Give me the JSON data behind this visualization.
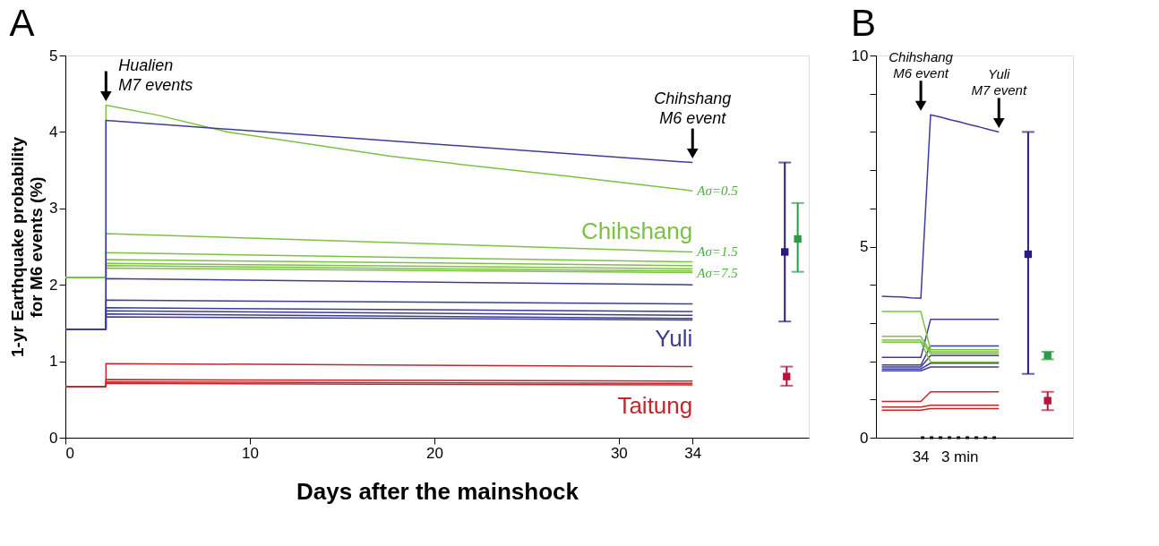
{
  "chart_data": [
    {
      "type": "line",
      "title": "A",
      "xlabel": "Days after the mainshock",
      "ylabel": "1-yr Earthquake probability\nfor M6 events (%)",
      "xlim": [
        0,
        40.3
      ],
      "xticks": [
        0,
        10,
        20,
        30,
        34
      ],
      "ylim": [
        0,
        5
      ],
      "yticks": [
        0,
        1,
        2,
        3,
        4,
        5
      ],
      "grid": false,
      "legend": false,
      "line_style": "solid",
      "series": [
        {
          "color": "#7cc242",
          "x": [
            0,
            2.2,
            2.2,
            5,
            8.8,
            13,
            17.7,
            22,
            27.3,
            34
          ],
          "values": [
            2.1,
            2.1,
            4.35,
            4.22,
            4.0,
            3.85,
            3.68,
            3.56,
            3.42,
            3.23
          ]
        },
        {
          "name": "Chihshang",
          "color": "#7cc242",
          "x": [
            0,
            2.2,
            2.2,
            34
          ],
          "values": [
            2.1,
            2.1,
            2.67,
            2.43
          ]
        },
        {
          "color": "#7cc242",
          "x": [
            0,
            2.2,
            2.2,
            34
          ],
          "values": [
            2.1,
            2.1,
            2.42,
            2.3
          ]
        },
        {
          "color": "#7cc242",
          "x": [
            0,
            2.2,
            2.2,
            34
          ],
          "values": [
            2.1,
            2.1,
            2.33,
            2.25
          ]
        },
        {
          "color": "#7cc242",
          "x": [
            0,
            2.2,
            2.2,
            34
          ],
          "values": [
            2.1,
            2.1,
            2.28,
            2.21
          ]
        },
        {
          "color": "#7cc242",
          "x": [
            0,
            2.2,
            2.2,
            34
          ],
          "values": [
            2.1,
            2.1,
            2.25,
            2.18
          ]
        },
        {
          "color": "#7cc242",
          "x": [
            0,
            2.2,
            2.2,
            34
          ],
          "values": [
            2.1,
            2.1,
            2.22,
            2.16
          ]
        },
        {
          "color": "#3d3d99",
          "x": [
            0,
            2.2,
            2.2,
            34
          ],
          "values": [
            1.42,
            1.42,
            4.15,
            3.6
          ]
        },
        {
          "color": "#3d3d99",
          "x": [
            0,
            2.2,
            2.2,
            34
          ],
          "values": [
            1.42,
            1.42,
            2.08,
            2.0
          ]
        },
        {
          "color": "#3d3d99",
          "x": [
            0,
            2.2,
            2.2,
            34
          ],
          "values": [
            1.42,
            1.42,
            1.8,
            1.75
          ]
        },
        {
          "color": "#3d3d99",
          "x": [
            0,
            2.2,
            2.2,
            34
          ],
          "values": [
            1.42,
            1.42,
            1.7,
            1.65
          ]
        },
        {
          "color": "#3d3d99",
          "x": [
            0,
            2.2,
            2.2,
            34
          ],
          "values": [
            1.42,
            1.42,
            1.66,
            1.6
          ]
        },
        {
          "color": "#3d3d99",
          "x": [
            0,
            2.2,
            2.2,
            34
          ],
          "values": [
            1.42,
            1.42,
            1.62,
            1.56
          ]
        },
        {
          "name": "Yuli",
          "color": "#3d3d99",
          "x": [
            0,
            2.2,
            2.2,
            34
          ],
          "values": [
            1.42,
            1.42,
            1.58,
            1.54
          ]
        },
        {
          "color": "#c1272d",
          "x": [
            0,
            2.2,
            2.2,
            34
          ],
          "values": [
            0.67,
            0.67,
            0.97,
            0.93
          ]
        },
        {
          "color": "#c1272d",
          "x": [
            0,
            2.2,
            2.2,
            34
          ],
          "values": [
            0.67,
            0.67,
            0.76,
            0.74
          ]
        },
        {
          "color": "#c1272d",
          "x": [
            0,
            2.2,
            2.2,
            34
          ],
          "values": [
            0.67,
            0.67,
            0.73,
            0.71
          ]
        },
        {
          "name": "Taitung",
          "color": "#c1272d",
          "x": [
            0,
            2.2,
            2.2,
            34
          ],
          "values": [
            0.67,
            0.67,
            0.71,
            0.69
          ]
        },
        {
          "type": "scatter",
          "marker": "square",
          "color": "#2b1a7f",
          "x": [
            39.0
          ],
          "values": [
            2.43
          ],
          "errors": [
            [
              1.52,
              3.6
            ]
          ]
        },
        {
          "type": "scatter",
          "marker": "square",
          "color": "#2e9a48",
          "x": [
            39.7
          ],
          "values": [
            2.6
          ],
          "errors": [
            [
              2.17,
              3.07
            ]
          ]
        },
        {
          "type": "scatter",
          "marker": "square",
          "color": "#b3163a",
          "x": [
            39.1
          ],
          "values": [
            0.8
          ],
          "errors": [
            [
              0.68,
              0.93
            ]
          ]
        }
      ],
      "annotations": [
        "Hualien\nM7 events",
        {
          "text": "Chihshang\nM6 event",
          "x": 34,
          "y": 3.6
        },
        "Aσ=0.5",
        "Aσ=1.5",
        "Aσ=7.5"
      ]
    },
    {
      "type": "line",
      "title": "B",
      "tick_labels": "y",
      "categories": [
        null,
        null,
        null,
        null,
        null,
        null,
        null,
        null,
        null,
        null,
        null,
        null,
        null,
        null,
        null,
        null,
        null,
        null,
        null,
        null
      ],
      "ylim": [
        0,
        10
      ],
      "yticks": [
        0,
        {
          "value": 1,
          "label": null
        },
        {
          "value": 2,
          "label": null
        },
        {
          "value": 3,
          "label": null
        },
        {
          "value": 4,
          "label": null
        },
        5,
        {
          "value": 6,
          "label": null
        },
        {
          "value": 7,
          "label": null
        },
        {
          "value": 8,
          "label": null
        },
        {
          "value": 9,
          "label": null
        },
        10
      ],
      "grid": false,
      "legend": false,
      "line_style": "solid",
      "series": [
        {
          "color": "#3d3d99",
          "values": [
            3.7,
            3.69,
            3.68,
            3.66,
            3.65,
            8.45,
            8.39,
            8.32,
            8.26,
            8.19,
            8.13,
            8.06,
            8.0,
            null,
            null,
            null,
            null,
            null,
            null,
            null
          ]
        },
        {
          "color": "#3d3d99",
          "values": [
            2.1,
            2.1,
            2.1,
            2.1,
            2.1,
            3.1,
            3.1,
            3.1,
            3.1,
            3.1,
            3.1,
            3.1,
            3.1,
            null,
            null,
            null,
            null,
            null,
            null,
            null
          ]
        },
        {
          "color": "#3d3d99",
          "values": [
            1.9,
            1.9,
            1.9,
            1.9,
            1.9,
            2.4,
            2.4,
            2.4,
            2.4,
            2.4,
            2.4,
            2.4,
            2.4,
            null,
            null,
            null,
            null,
            null,
            null,
            null
          ]
        },
        {
          "color": "#3d3d99",
          "values": [
            1.85,
            1.85,
            1.85,
            1.85,
            1.85,
            2.15,
            2.15,
            2.15,
            2.15,
            2.15,
            2.15,
            2.15,
            2.15,
            null,
            null,
            null,
            null,
            null,
            null,
            null
          ]
        },
        {
          "color": "#3d3d99",
          "values": [
            1.8,
            1.8,
            1.8,
            1.8,
            1.8,
            1.95,
            1.95,
            1.95,
            1.95,
            1.95,
            1.95,
            1.95,
            1.95,
            null,
            null,
            null,
            null,
            null,
            null,
            null
          ]
        },
        {
          "color": "#3d3d99",
          "values": [
            1.75,
            1.75,
            1.75,
            1.75,
            1.75,
            1.85,
            1.85,
            1.85,
            1.85,
            1.85,
            1.85,
            1.85,
            1.85,
            null,
            null,
            null,
            null,
            null,
            null,
            null
          ]
        },
        {
          "color": "#7cc242",
          "values": [
            3.3,
            3.3,
            3.3,
            3.3,
            3.3,
            2.3,
            2.3,
            2.3,
            2.3,
            2.3,
            2.3,
            2.3,
            2.3,
            null,
            null,
            null,
            null,
            null,
            null,
            null
          ]
        },
        {
          "color": "#7cc242",
          "values": [
            2.65,
            2.65,
            2.65,
            2.65,
            2.65,
            2.25,
            2.25,
            2.25,
            2.25,
            2.25,
            2.25,
            2.25,
            2.25,
            null,
            null,
            null,
            null,
            null,
            null,
            null
          ]
        },
        {
          "color": "#7cc242",
          "values": [
            2.55,
            2.55,
            2.55,
            2.55,
            2.55,
            2.2,
            2.2,
            2.2,
            2.2,
            2.2,
            2.2,
            2.2,
            2.2,
            null,
            null,
            null,
            null,
            null,
            null,
            null
          ]
        },
        {
          "color": "#7cc242",
          "values": [
            2.5,
            2.5,
            2.5,
            2.5,
            2.5,
            1.98,
            1.98,
            1.98,
            1.98,
            1.98,
            1.98,
            1.98,
            1.98,
            null,
            null,
            null,
            null,
            null,
            null,
            null
          ]
        },
        {
          "color": "#c1272d",
          "values": [
            0.95,
            0.95,
            0.95,
            0.95,
            0.95,
            1.2,
            1.2,
            1.2,
            1.2,
            1.2,
            1.2,
            1.2,
            1.2,
            null,
            null,
            null,
            null,
            null,
            null,
            null
          ]
        },
        {
          "color": "#c1272d",
          "values": [
            0.8,
            0.8,
            0.8,
            0.8,
            0.8,
            0.85,
            0.85,
            0.85,
            0.85,
            0.85,
            0.85,
            0.85,
            0.85,
            null,
            null,
            null,
            null,
            null,
            null,
            null
          ]
        },
        {
          "color": "#c1272d",
          "values": [
            0.72,
            0.72,
            0.72,
            0.72,
            0.72,
            0.76,
            0.76,
            0.76,
            0.76,
            0.76,
            0.76,
            0.76,
            0.76,
            null,
            null,
            null,
            null,
            null,
            null,
            null
          ]
        },
        {
          "type": "scatter",
          "marker": "square",
          "color": "#2b1a7f",
          "values": [
            null,
            null,
            null,
            null,
            null,
            null,
            null,
            null,
            null,
            null,
            null,
            null,
            null,
            null,
            null,
            4.8,
            null,
            null,
            null,
            null
          ],
          "errors": [
            null,
            null,
            null,
            null,
            null,
            null,
            null,
            null,
            null,
            null,
            null,
            null,
            null,
            null,
            null,
            [
              1.67,
              8.0
            ],
            null,
            null,
            null,
            null
          ]
        },
        {
          "type": "scatter",
          "marker": "square",
          "color": "#2e9a48",
          "values": [
            null,
            null,
            null,
            null,
            null,
            null,
            null,
            null,
            null,
            null,
            null,
            null,
            null,
            null,
            null,
            null,
            null,
            2.15,
            null,
            null
          ],
          "errors": [
            null,
            null,
            null,
            null,
            null,
            null,
            null,
            null,
            null,
            null,
            null,
            null,
            null,
            null,
            null,
            null,
            null,
            [
              2.05,
              2.25
            ],
            null,
            null
          ]
        },
        {
          "type": "scatter",
          "marker": "square",
          "color": "#b3163a",
          "values": [
            null,
            null,
            null,
            null,
            null,
            null,
            null,
            null,
            null,
            null,
            null,
            null,
            null,
            null,
            null,
            null,
            null,
            0.97,
            null,
            null
          ],
          "errors": [
            null,
            null,
            null,
            null,
            null,
            null,
            null,
            null,
            null,
            null,
            null,
            null,
            null,
            null,
            null,
            null,
            null,
            [
              0.72,
              1.2
            ],
            null,
            null
          ]
        }
      ],
      "annotations": [
        "Chihshang\nM6 event",
        "Yuli\nM7 event",
        "34",
        "3 min"
      ]
    }
  ]
}
